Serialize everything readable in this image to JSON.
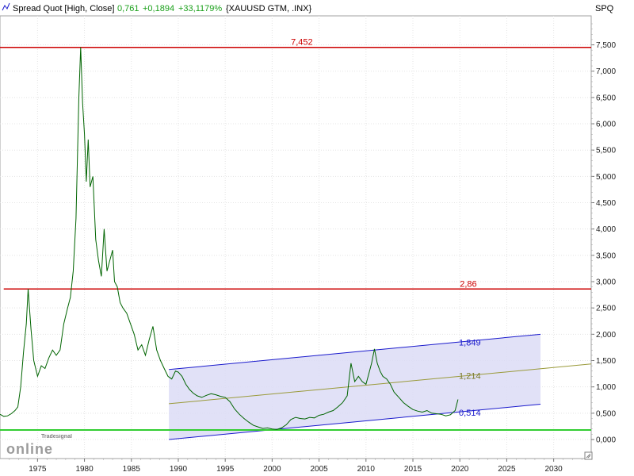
{
  "header": {
    "icon": "line-chart-icon",
    "series_label": "Spread Quot [High, Close]",
    "last_value": "0,761",
    "change_abs": "+0,1894",
    "change_pct": "+33,1179%",
    "instrument": "{XAUUSD GTM, .INX}",
    "axis_name": "SPQ",
    "colors": {
      "label": "#000000",
      "change": "#1aa01a"
    }
  },
  "logo": {
    "top": "Tradesignal",
    "bottom": "online"
  },
  "corner_icon": "resize-grip-icon",
  "chart_data": {
    "type": "line",
    "xlim": [
      1971,
      2034
    ],
    "ylim": [
      0,
      7.9
    ],
    "x_ticks": [
      "1975",
      "1980",
      "1985",
      "1990",
      "1995",
      "2000",
      "2005",
      "2010",
      "2015",
      "2020",
      "2025",
      "2030"
    ],
    "x_tick_values": [
      1975,
      1980,
      1985,
      1990,
      1995,
      2000,
      2005,
      2010,
      2015,
      2020,
      2025,
      2030
    ],
    "y_ticks": [
      "7,500",
      "7,000",
      "6,500",
      "6,000",
      "5,500",
      "5,000",
      "4,500",
      "4,000",
      "3,500",
      "3,000",
      "2,500",
      "2,000",
      "1,500",
      "1,000",
      "0,500",
      "0,000"
    ],
    "y_tick_values": [
      7.5,
      7.0,
      6.5,
      6.0,
      5.5,
      5.0,
      4.5,
      4.0,
      3.5,
      3.0,
      2.5,
      2.0,
      1.5,
      1.0,
      0.5,
      0.0
    ],
    "series": [
      {
        "color": "#006400",
        "points": [
          [
            1971.0,
            0.48
          ],
          [
            1971.4,
            0.44
          ],
          [
            1971.8,
            0.45
          ],
          [
            1972.2,
            0.49
          ],
          [
            1972.6,
            0.55
          ],
          [
            1972.9,
            0.62
          ],
          [
            1973.2,
            1.0
          ],
          [
            1973.5,
            1.65
          ],
          [
            1973.8,
            2.2
          ],
          [
            1974.0,
            2.86
          ],
          [
            1974.3,
            2.1
          ],
          [
            1974.6,
            1.5
          ],
          [
            1975.0,
            1.2
          ],
          [
            1975.4,
            1.4
          ],
          [
            1975.8,
            1.35
          ],
          [
            1976.2,
            1.55
          ],
          [
            1976.6,
            1.7
          ],
          [
            1977.0,
            1.6
          ],
          [
            1977.4,
            1.7
          ],
          [
            1977.8,
            2.2
          ],
          [
            1978.2,
            2.5
          ],
          [
            1978.5,
            2.7
          ],
          [
            1978.8,
            3.2
          ],
          [
            1979.1,
            4.2
          ],
          [
            1979.4,
            6.5
          ],
          [
            1979.6,
            7.452
          ],
          [
            1979.8,
            6.4
          ],
          [
            1980.0,
            5.8
          ],
          [
            1980.2,
            4.9
          ],
          [
            1980.4,
            5.7
          ],
          [
            1980.6,
            4.8
          ],
          [
            1980.9,
            5.0
          ],
          [
            1981.2,
            3.8
          ],
          [
            1981.5,
            3.4
          ],
          [
            1981.8,
            3.1
          ],
          [
            1982.1,
            4.0
          ],
          [
            1982.4,
            3.2
          ],
          [
            1982.7,
            3.4
          ],
          [
            1983.0,
            3.6
          ],
          [
            1983.2,
            3.0
          ],
          [
            1983.5,
            2.9
          ],
          [
            1983.8,
            2.6
          ],
          [
            1984.1,
            2.5
          ],
          [
            1984.5,
            2.4
          ],
          [
            1984.9,
            2.2
          ],
          [
            1985.3,
            2.0
          ],
          [
            1985.7,
            1.7
          ],
          [
            1986.1,
            1.8
          ],
          [
            1986.5,
            1.6
          ],
          [
            1986.9,
            1.9
          ],
          [
            1987.3,
            2.15
          ],
          [
            1987.7,
            1.7
          ],
          [
            1988.1,
            1.5
          ],
          [
            1988.5,
            1.35
          ],
          [
            1988.9,
            1.2
          ],
          [
            1989.3,
            1.15
          ],
          [
            1989.7,
            1.3
          ],
          [
            1990.0,
            1.28
          ],
          [
            1990.4,
            1.2
          ],
          [
            1990.8,
            1.05
          ],
          [
            1991.2,
            0.95
          ],
          [
            1991.6,
            0.88
          ],
          [
            1992.0,
            0.83
          ],
          [
            1992.5,
            0.8
          ],
          [
            1993.0,
            0.84
          ],
          [
            1993.5,
            0.87
          ],
          [
            1994.0,
            0.85
          ],
          [
            1994.5,
            0.82
          ],
          [
            1995.0,
            0.8
          ],
          [
            1995.5,
            0.72
          ],
          [
            1996.0,
            0.58
          ],
          [
            1996.5,
            0.48
          ],
          [
            1997.0,
            0.4
          ],
          [
            1997.5,
            0.33
          ],
          [
            1998.0,
            0.27
          ],
          [
            1998.5,
            0.24
          ],
          [
            1999.0,
            0.21
          ],
          [
            1999.5,
            0.22
          ],
          [
            2000.0,
            0.2
          ],
          [
            2000.5,
            0.19
          ],
          [
            2001.0,
            0.22
          ],
          [
            2001.5,
            0.28
          ],
          [
            2002.0,
            0.38
          ],
          [
            2002.5,
            0.42
          ],
          [
            2003.0,
            0.4
          ],
          [
            2003.5,
            0.39
          ],
          [
            2004.0,
            0.42
          ],
          [
            2004.5,
            0.41
          ],
          [
            2005.0,
            0.46
          ],
          [
            2005.5,
            0.48
          ],
          [
            2006.0,
            0.52
          ],
          [
            2006.5,
            0.55
          ],
          [
            2007.0,
            0.62
          ],
          [
            2007.5,
            0.7
          ],
          [
            2008.0,
            0.83
          ],
          [
            2008.4,
            1.45
          ],
          [
            2008.8,
            1.1
          ],
          [
            2009.2,
            1.2
          ],
          [
            2009.6,
            1.1
          ],
          [
            2010.0,
            1.05
          ],
          [
            2010.3,
            1.25
          ],
          [
            2010.6,
            1.45
          ],
          [
            2010.9,
            1.72
          ],
          [
            2011.2,
            1.45
          ],
          [
            2011.5,
            1.3
          ],
          [
            2011.8,
            1.2
          ],
          [
            2012.2,
            1.15
          ],
          [
            2012.6,
            1.05
          ],
          [
            2013.0,
            0.9
          ],
          [
            2013.5,
            0.8
          ],
          [
            2014.0,
            0.7
          ],
          [
            2014.5,
            0.63
          ],
          [
            2015.0,
            0.57
          ],
          [
            2015.5,
            0.54
          ],
          [
            2016.0,
            0.52
          ],
          [
            2016.5,
            0.55
          ],
          [
            2017.0,
            0.5
          ],
          [
            2017.5,
            0.49
          ],
          [
            2018.0,
            0.48
          ],
          [
            2018.5,
            0.45
          ],
          [
            2019.0,
            0.47
          ],
          [
            2019.5,
            0.55
          ],
          [
            2019.8,
            0.761
          ]
        ]
      }
    ],
    "hlines": [
      {
        "label": "7,452",
        "y": 7.452,
        "color": "#cc0000",
        "x_from": 1971,
        "x_to": 2034,
        "label_x": 2002
      },
      {
        "label": "2,86",
        "y": 2.86,
        "color": "#cc0000",
        "x_from": 1971.4,
        "x_to": 2034,
        "label_x": 2020
      },
      {
        "label": "",
        "y": 0.18,
        "color": "#32cd32",
        "x_from": 1971,
        "x_to": 2034
      }
    ],
    "channel": {
      "x_start": 1989.0,
      "x_end": 2028.6,
      "upper": [
        1.33,
        2.0
      ],
      "mid": [
        0.68,
        1.345
      ],
      "lower": [
        0.0,
        0.67
      ],
      "mid_extend_to": 2034,
      "labels": {
        "upper": "1,849",
        "mid": "1,214",
        "lower": "0,514"
      },
      "label_x": 2019.9,
      "label_y": {
        "upper": 1.849,
        "mid": 1.214,
        "lower": 0.514
      },
      "colors": {
        "edge": "#1a1acc",
        "mid": "#9a9a3a",
        "fill": "#dcdcf6"
      }
    },
    "grid": true,
    "legend": "none"
  }
}
